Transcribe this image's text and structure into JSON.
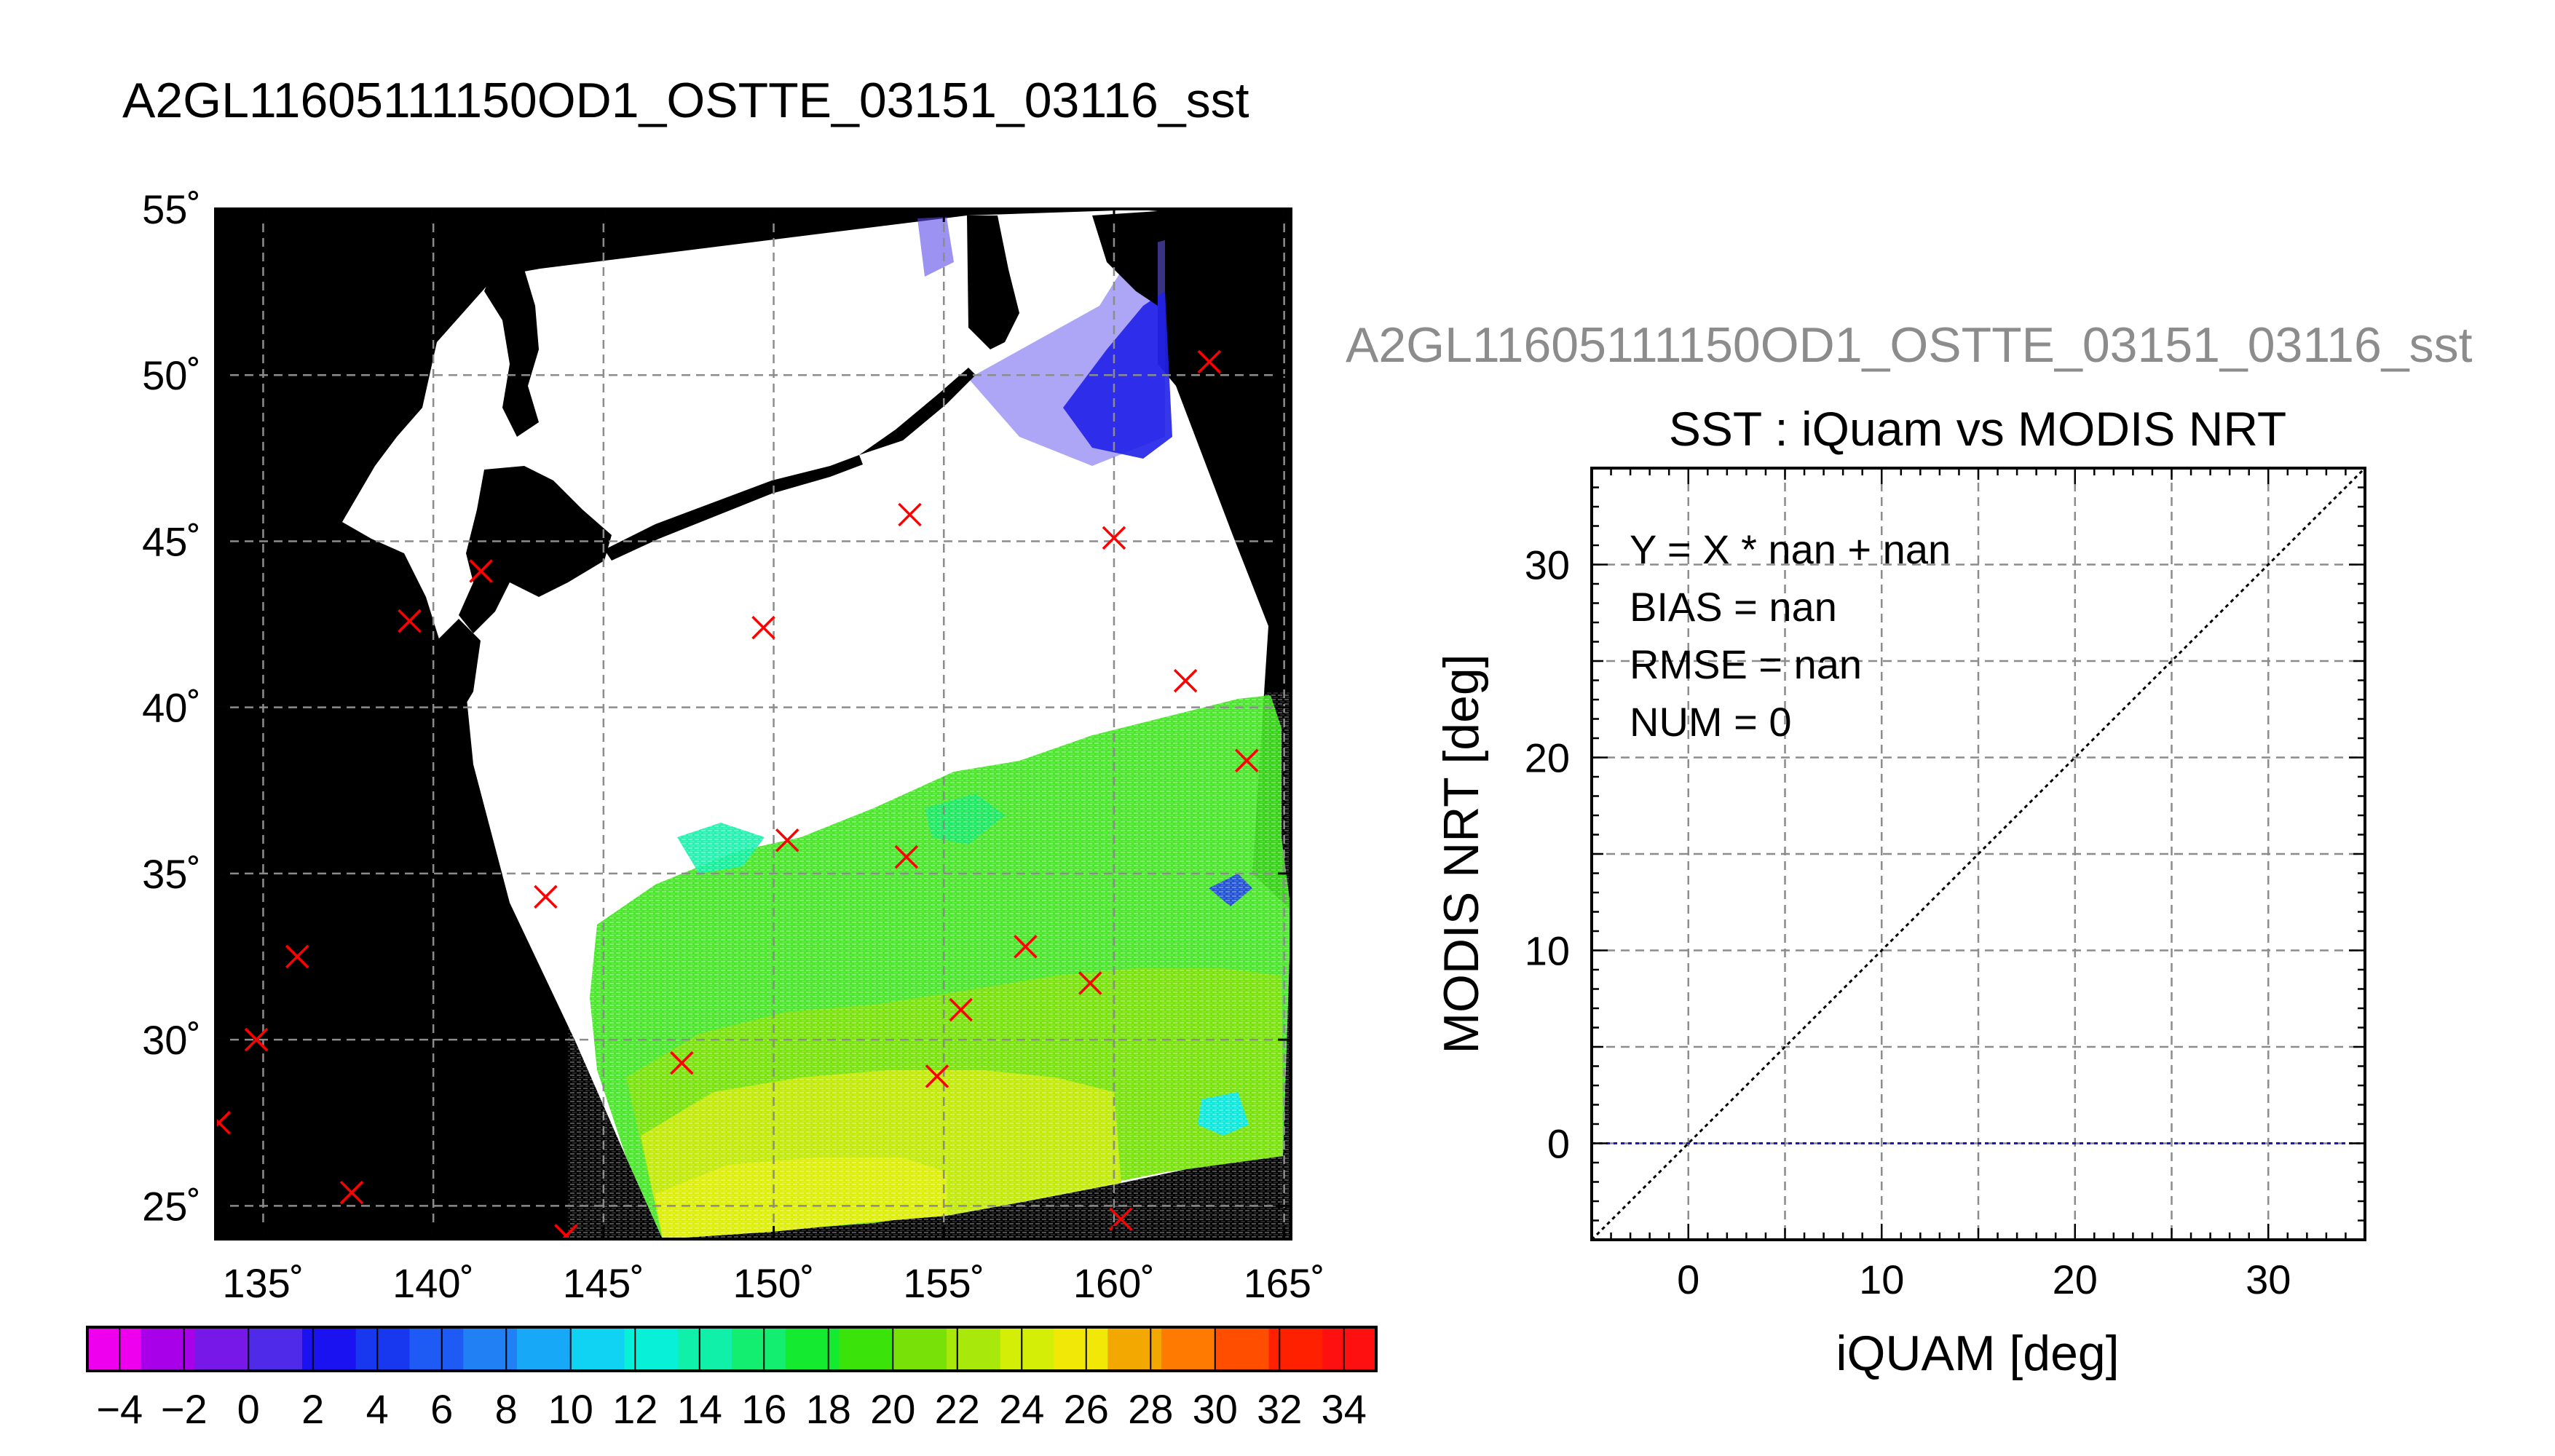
{
  "page_title": "A2GL11605111150OD1_OSTTE_03151_03116_sst",
  "colors": {
    "background": "#ffffff",
    "land": "#000000",
    "cloud": "#ffffff",
    "grid": "#8c8c8c",
    "marker": "#ff0000",
    "one_to_one_line": "#000000",
    "bias_line": "#1a1aa8"
  },
  "chart_data": [
    {
      "type": "map",
      "title": "A2GL11605111150OD1_OSTTE_03151_03116_sst",
      "xlim": [
        133.6,
        165.2
      ],
      "ylim": [
        24,
        55
      ],
      "x_ticks": [
        {
          "value": 135,
          "label": "135˚"
        },
        {
          "value": 140,
          "label": "140˚"
        },
        {
          "value": 145,
          "label": "145˚"
        },
        {
          "value": 150,
          "label": "150˚"
        },
        {
          "value": 155,
          "label": "155˚"
        },
        {
          "value": 160,
          "label": "160˚"
        },
        {
          "value": 165,
          "label": "165˚"
        }
      ],
      "y_ticks": [
        {
          "value": 25,
          "label": "25˚"
        },
        {
          "value": 30,
          "label": "30˚"
        },
        {
          "value": 35,
          "label": "35˚"
        },
        {
          "value": 40,
          "label": "40˚"
        },
        {
          "value": 45,
          "label": "45˚"
        },
        {
          "value": 50,
          "label": "50˚"
        },
        {
          "value": 55,
          "label": "55˚"
        }
      ],
      "grid": true,
      "swath_corners": [
        [
          142.2,
          54.0
        ],
        [
          161.2,
          55.0
        ],
        [
          165.0,
          26.8
        ],
        [
          146.5,
          24.0
        ],
        [
          140.4,
          41.5
        ],
        [
          137.6,
          45.7
        ]
      ],
      "markers": [
        {
          "lon": 162.8,
          "lat": 50.4
        },
        {
          "lon": 160.0,
          "lat": 45.1
        },
        {
          "lon": 154.0,
          "lat": 45.8
        },
        {
          "lon": 149.7,
          "lat": 42.4
        },
        {
          "lon": 141.4,
          "lat": 44.1
        },
        {
          "lon": 139.3,
          "lat": 42.6
        },
        {
          "lon": 162.1,
          "lat": 40.8
        },
        {
          "lon": 163.9,
          "lat": 38.4
        },
        {
          "lon": 150.4,
          "lat": 36.0
        },
        {
          "lon": 153.9,
          "lat": 35.5
        },
        {
          "lon": 143.3,
          "lat": 34.3
        },
        {
          "lon": 157.4,
          "lat": 32.8
        },
        {
          "lon": 159.3,
          "lat": 31.7
        },
        {
          "lon": 155.5,
          "lat": 30.9
        },
        {
          "lon": 136.0,
          "lat": 32.5
        },
        {
          "lon": 134.8,
          "lat": 30.0
        },
        {
          "lon": 147.3,
          "lat": 29.3
        },
        {
          "lon": 154.8,
          "lat": 28.9
        },
        {
          "lon": 133.7,
          "lat": 27.5
        },
        {
          "lon": 137.6,
          "lat": 25.4
        },
        {
          "lon": 160.2,
          "lat": 24.6
        },
        {
          "lon": 143.9,
          "lat": 24.1
        }
      ],
      "colorbar": {
        "min": -5,
        "max": 35,
        "step": 2,
        "tick_labels": [
          "−4",
          "−2",
          "0",
          "2",
          "4",
          "6",
          "8",
          "10",
          "12",
          "14",
          "16",
          "18",
          "20",
          "22",
          "24",
          "26",
          "28",
          "30",
          "32",
          "34"
        ],
        "tick_values": [
          -4,
          -2,
          0,
          2,
          4,
          6,
          8,
          10,
          12,
          14,
          16,
          18,
          20,
          22,
          24,
          26,
          28,
          30,
          32,
          34
        ],
        "colors": [
          "#ee00ee",
          "#a800e8",
          "#7818e8",
          "#4f2ae8",
          "#1a12f0",
          "#1838f0",
          "#1e5af4",
          "#2080f4",
          "#18a8f8",
          "#10d2f2",
          "#08f0d8",
          "#10f0a8",
          "#14ee70",
          "#14ea30",
          "#3ae40a",
          "#78e208",
          "#a8e80a",
          "#d4ee08",
          "#f2e808",
          "#f2a800",
          "#ff7a00",
          "#ff4e00",
          "#ff2000",
          "#ff1010"
        ]
      }
    },
    {
      "type": "scatter",
      "title": "SST : iQuam vs MODIS NRT",
      "xlabel": "iQUAM [deg]",
      "ylabel": "MODIS NRT [deg]",
      "xlim": [
        -5,
        35
      ],
      "ylim": [
        -5,
        35
      ],
      "x_ticks": [
        0,
        10,
        20,
        30
      ],
      "y_ticks": [
        0,
        10,
        20,
        30
      ],
      "grid_step": 5,
      "points": [],
      "reference_line": {
        "label": "",
        "x": [
          -5,
          35
        ],
        "y": [
          -5,
          35
        ]
      },
      "bias_line": {
        "y": 0
      },
      "stats": [
        "Y = X * nan + nan",
        "BIAS = nan",
        "RMSE = nan",
        "NUM = 0"
      ]
    }
  ]
}
